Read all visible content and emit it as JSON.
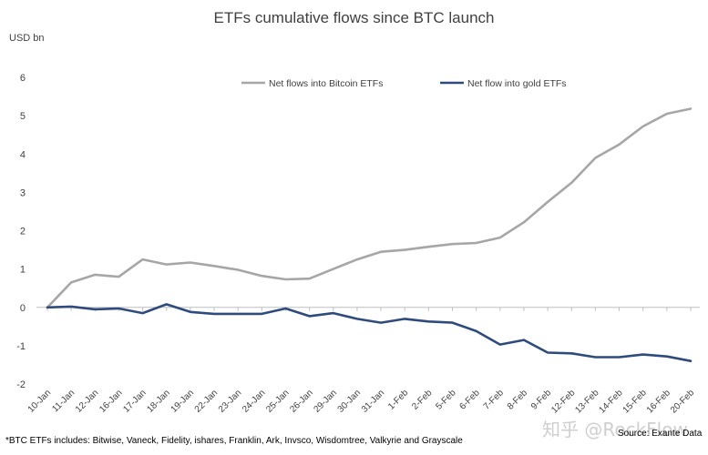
{
  "title": "ETFs cumulative flows since BTC launch",
  "unit_label": "USD bn",
  "footnote": "*BTC ETFs includes: Bitwise, Vaneck, Fidelity, ishares, Franklin, Ark, Invsco, Wisdomtree, Valkyrie and Grayscale",
  "source": "Source: Exante Data",
  "watermark": "知乎 @RockFlow",
  "chart_data": {
    "type": "line",
    "title": "ETFs cumulative flows since BTC launch",
    "ylabel": "USD bn",
    "xlabel": "",
    "ylim": [
      -2,
      6
    ],
    "yticks": [
      -2,
      -1,
      0,
      1,
      2,
      3,
      4,
      5,
      6
    ],
    "grid": false,
    "legend_position": "top",
    "categories": [
      "10-Jan",
      "11-Jan",
      "12-Jan",
      "16-Jan",
      "17-Jan",
      "18-Jan",
      "19-Jan",
      "22-Jan",
      "23-Jan",
      "24-Jan",
      "25-Jan",
      "26-Jan",
      "29-Jan",
      "30-Jan",
      "31-Jan",
      "1-Feb",
      "2-Feb",
      "5-Feb",
      "6-Feb",
      "7-Feb",
      "8-Feb",
      "9-Feb",
      "12-Feb",
      "13-Feb",
      "14-Feb",
      "15-Feb",
      "16-Feb",
      "20-Feb"
    ],
    "series": [
      {
        "name": "Net flows into Bitcoin ETFs",
        "color": "#a6a6a6",
        "values": [
          0.0,
          0.65,
          0.85,
          0.8,
          1.25,
          1.12,
          1.17,
          1.08,
          0.98,
          0.82,
          0.73,
          0.75,
          1.0,
          1.25,
          1.45,
          1.5,
          1.58,
          1.65,
          1.68,
          1.82,
          2.22,
          2.75,
          3.25,
          3.9,
          4.25,
          4.72,
          5.05,
          5.18
        ]
      },
      {
        "name": "Net flow into gold ETFs",
        "color": "#2f4b7c",
        "values": [
          0.0,
          0.02,
          -0.05,
          -0.03,
          -0.15,
          0.08,
          -0.12,
          -0.17,
          -0.17,
          -0.17,
          -0.03,
          -0.23,
          -0.15,
          -0.3,
          -0.4,
          -0.3,
          -0.37,
          -0.4,
          -0.62,
          -0.97,
          -0.85,
          -1.18,
          -1.2,
          -1.3,
          -1.3,
          -1.23,
          -1.28,
          -1.4
        ]
      }
    ]
  }
}
